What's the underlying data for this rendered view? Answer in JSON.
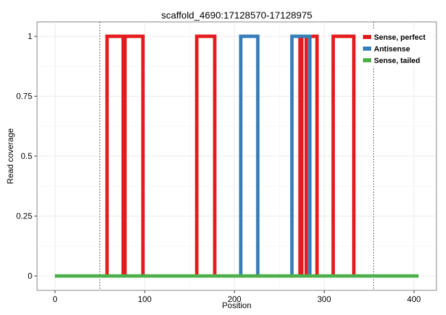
{
  "chart_data": {
    "type": "line",
    "title": "scaffold_4690:17128570-17128975",
    "xlabel": "Position",
    "ylabel": "Read coverage",
    "xlim": [
      -20,
      425
    ],
    "ylim": [
      -0.06,
      1.06
    ],
    "xticks": [
      0,
      100,
      200,
      300,
      400
    ],
    "xtick_labels": [
      "0",
      "100",
      "200",
      "300",
      "400"
    ],
    "yticks": [
      0,
      0.25,
      0.5,
      0.75,
      1
    ],
    "ytick_labels": [
      "0",
      "0.25",
      "0.5",
      "0.75",
      "1"
    ],
    "grid": true,
    "vlines": [
      50,
      355
    ],
    "legend": {
      "position": "top-right"
    },
    "series": [
      {
        "name": "Sense, perfect",
        "color": "#e41a1c",
        "x": [
          0,
          58,
          58,
          76,
          76,
          78,
          78,
          80,
          80,
          98,
          98,
          158,
          158,
          178,
          178,
          273,
          273,
          275,
          275,
          280,
          280,
          292,
          292,
          310,
          310,
          333,
          333,
          405
        ],
        "y": [
          0,
          0,
          1,
          1,
          0,
          0,
          1,
          1,
          1,
          1,
          0,
          0,
          1,
          1,
          0,
          0,
          1,
          1,
          0,
          0,
          1,
          1,
          0,
          0,
          1,
          1,
          0,
          0
        ]
      },
      {
        "name": "Antisense",
        "color": "#377eb8",
        "x": [
          0,
          207,
          207,
          226,
          226,
          264,
          264,
          284,
          284,
          405
        ],
        "y": [
          0,
          0,
          1,
          1,
          0,
          0,
          1,
          1,
          0,
          0
        ]
      },
      {
        "name": "Sense, tailed",
        "color": "#4daf4a",
        "x": [
          0,
          405
        ],
        "y": [
          0,
          0
        ]
      }
    ]
  }
}
